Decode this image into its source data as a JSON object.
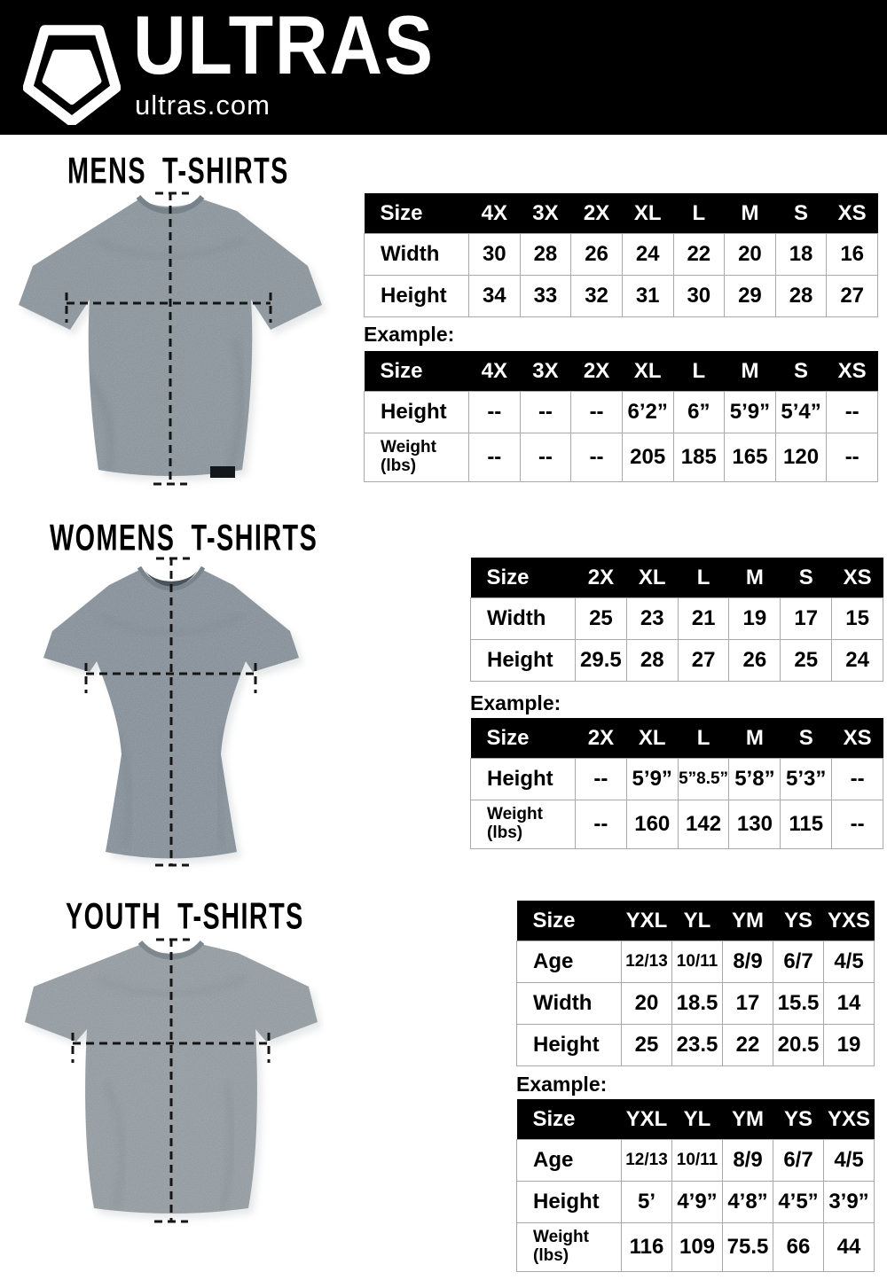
{
  "brand": {
    "name": "ULTRAS",
    "url": "ultras.com",
    "logo_icon": "pentagon-shield"
  },
  "colors": {
    "header_bg": "#000000",
    "table_header_bg": "#000000",
    "table_border": "#a9a9a9",
    "shirt_gray": "#8b959c"
  },
  "sections": [
    {
      "id": "mens",
      "title": "MENS T-SHIRTS",
      "example_label": "Example:",
      "size_table": {
        "header": [
          "Size",
          "4X",
          "3X",
          "2X",
          "XL",
          "L",
          "M",
          "S",
          "XS"
        ],
        "rows": [
          {
            "label": "Width",
            "values": [
              "30",
              "28",
              "26",
              "24",
              "22",
              "20",
              "18",
              "16"
            ]
          },
          {
            "label": "Height",
            "values": [
              "34",
              "33",
              "32",
              "31",
              "30",
              "29",
              "28",
              "27"
            ]
          }
        ]
      },
      "example_table": {
        "header": [
          "Size",
          "4X",
          "3X",
          "2X",
          "XL",
          "L",
          "M",
          "S",
          "XS"
        ],
        "rows": [
          {
            "label": "Height",
            "values": [
              "--",
              "--",
              "--",
              "6’2”",
              "6”",
              "5’9”",
              "5’4”",
              "--"
            ]
          },
          {
            "label": "Weight\n(lbs)",
            "values": [
              "--",
              "--",
              "--",
              "205",
              "185",
              "165",
              "120",
              "--"
            ]
          }
        ]
      }
    },
    {
      "id": "womens",
      "title": "WOMENS T-SHIRTS",
      "example_label": "Example:",
      "size_table": {
        "header": [
          "Size",
          "2X",
          "XL",
          "L",
          "M",
          "S",
          "XS"
        ],
        "rows": [
          {
            "label": "Width",
            "values": [
              "25",
              "23",
              "21",
              "19",
              "17",
              "15"
            ]
          },
          {
            "label": "Height",
            "values": [
              "29.5",
              "28",
              "27",
              "26",
              "25",
              "24"
            ]
          }
        ]
      },
      "example_table": {
        "header": [
          "Size",
          "2X",
          "XL",
          "L",
          "M",
          "S",
          "XS"
        ],
        "rows": [
          {
            "label": "Height",
            "values": [
              "--",
              "5’9”",
              "5”8.5”",
              "5’8”",
              "5’3”",
              "--"
            ]
          },
          {
            "label": "Weight\n(lbs)",
            "values": [
              "--",
              "160",
              "142",
              "130",
              "115",
              "--"
            ]
          }
        ]
      }
    },
    {
      "id": "youth",
      "title": "YOUTH T-SHIRTS",
      "example_label": "Example:",
      "size_table": {
        "header": [
          "Size",
          "YXL",
          "YL",
          "YM",
          "YS",
          "YXS"
        ],
        "rows": [
          {
            "label": "Age",
            "values": [
              "12/13",
              "10/11",
              "8/9",
              "6/7",
              "4/5"
            ]
          },
          {
            "label": "Width",
            "values": [
              "20",
              "18.5",
              "17",
              "15.5",
              "14"
            ]
          },
          {
            "label": "Height",
            "values": [
              "25",
              "23.5",
              "22",
              "20.5",
              "19"
            ]
          }
        ]
      },
      "example_table": {
        "header": [
          "Size",
          "YXL",
          "YL",
          "YM",
          "YS",
          "YXS"
        ],
        "rows": [
          {
            "label": "Age",
            "values": [
              "12/13",
              "10/11",
              "8/9",
              "6/7",
              "4/5"
            ]
          },
          {
            "label": "Height",
            "values": [
              "5’",
              "4’9”",
              "4’8”",
              "4’5”",
              "3’9”"
            ]
          },
          {
            "label": "Weight\n(lbs)",
            "values": [
              "116",
              "109",
              "75.5",
              "66",
              "44"
            ]
          }
        ]
      }
    }
  ]
}
